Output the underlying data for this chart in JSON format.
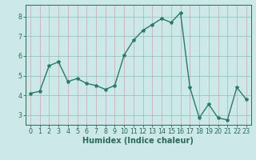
{
  "xlabel": "Humidex (Indice chaleur)",
  "x": [
    0,
    1,
    2,
    3,
    4,
    5,
    6,
    7,
    8,
    9,
    10,
    11,
    12,
    13,
    14,
    15,
    16,
    17,
    18,
    19,
    20,
    21,
    22,
    23
  ],
  "y": [
    4.1,
    4.2,
    5.5,
    5.7,
    4.7,
    4.85,
    4.6,
    4.5,
    4.3,
    4.5,
    6.05,
    6.8,
    7.3,
    7.6,
    7.9,
    7.7,
    8.2,
    4.4,
    2.85,
    3.55,
    2.85,
    2.75,
    4.4,
    3.8
  ],
  "line_color": "#2a7a6a",
  "marker": "*",
  "marker_size": 3,
  "background_color": "#cce8e8",
  "grid_color": "#aacece",
  "grid_color2": "#d4a0a0",
  "axis_color": "#2a6a5a",
  "ylim": [
    2.5,
    8.6
  ],
  "xlim": [
    -0.5,
    23.5
  ],
  "yticks": [
    3,
    4,
    5,
    6,
    7,
    8
  ],
  "xticks": [
    0,
    1,
    2,
    3,
    4,
    5,
    6,
    7,
    8,
    9,
    10,
    11,
    12,
    13,
    14,
    15,
    16,
    17,
    18,
    19,
    20,
    21,
    22,
    23
  ],
  "tick_fontsize": 5.8,
  "xlabel_fontsize": 7.0,
  "line_width": 1.0
}
